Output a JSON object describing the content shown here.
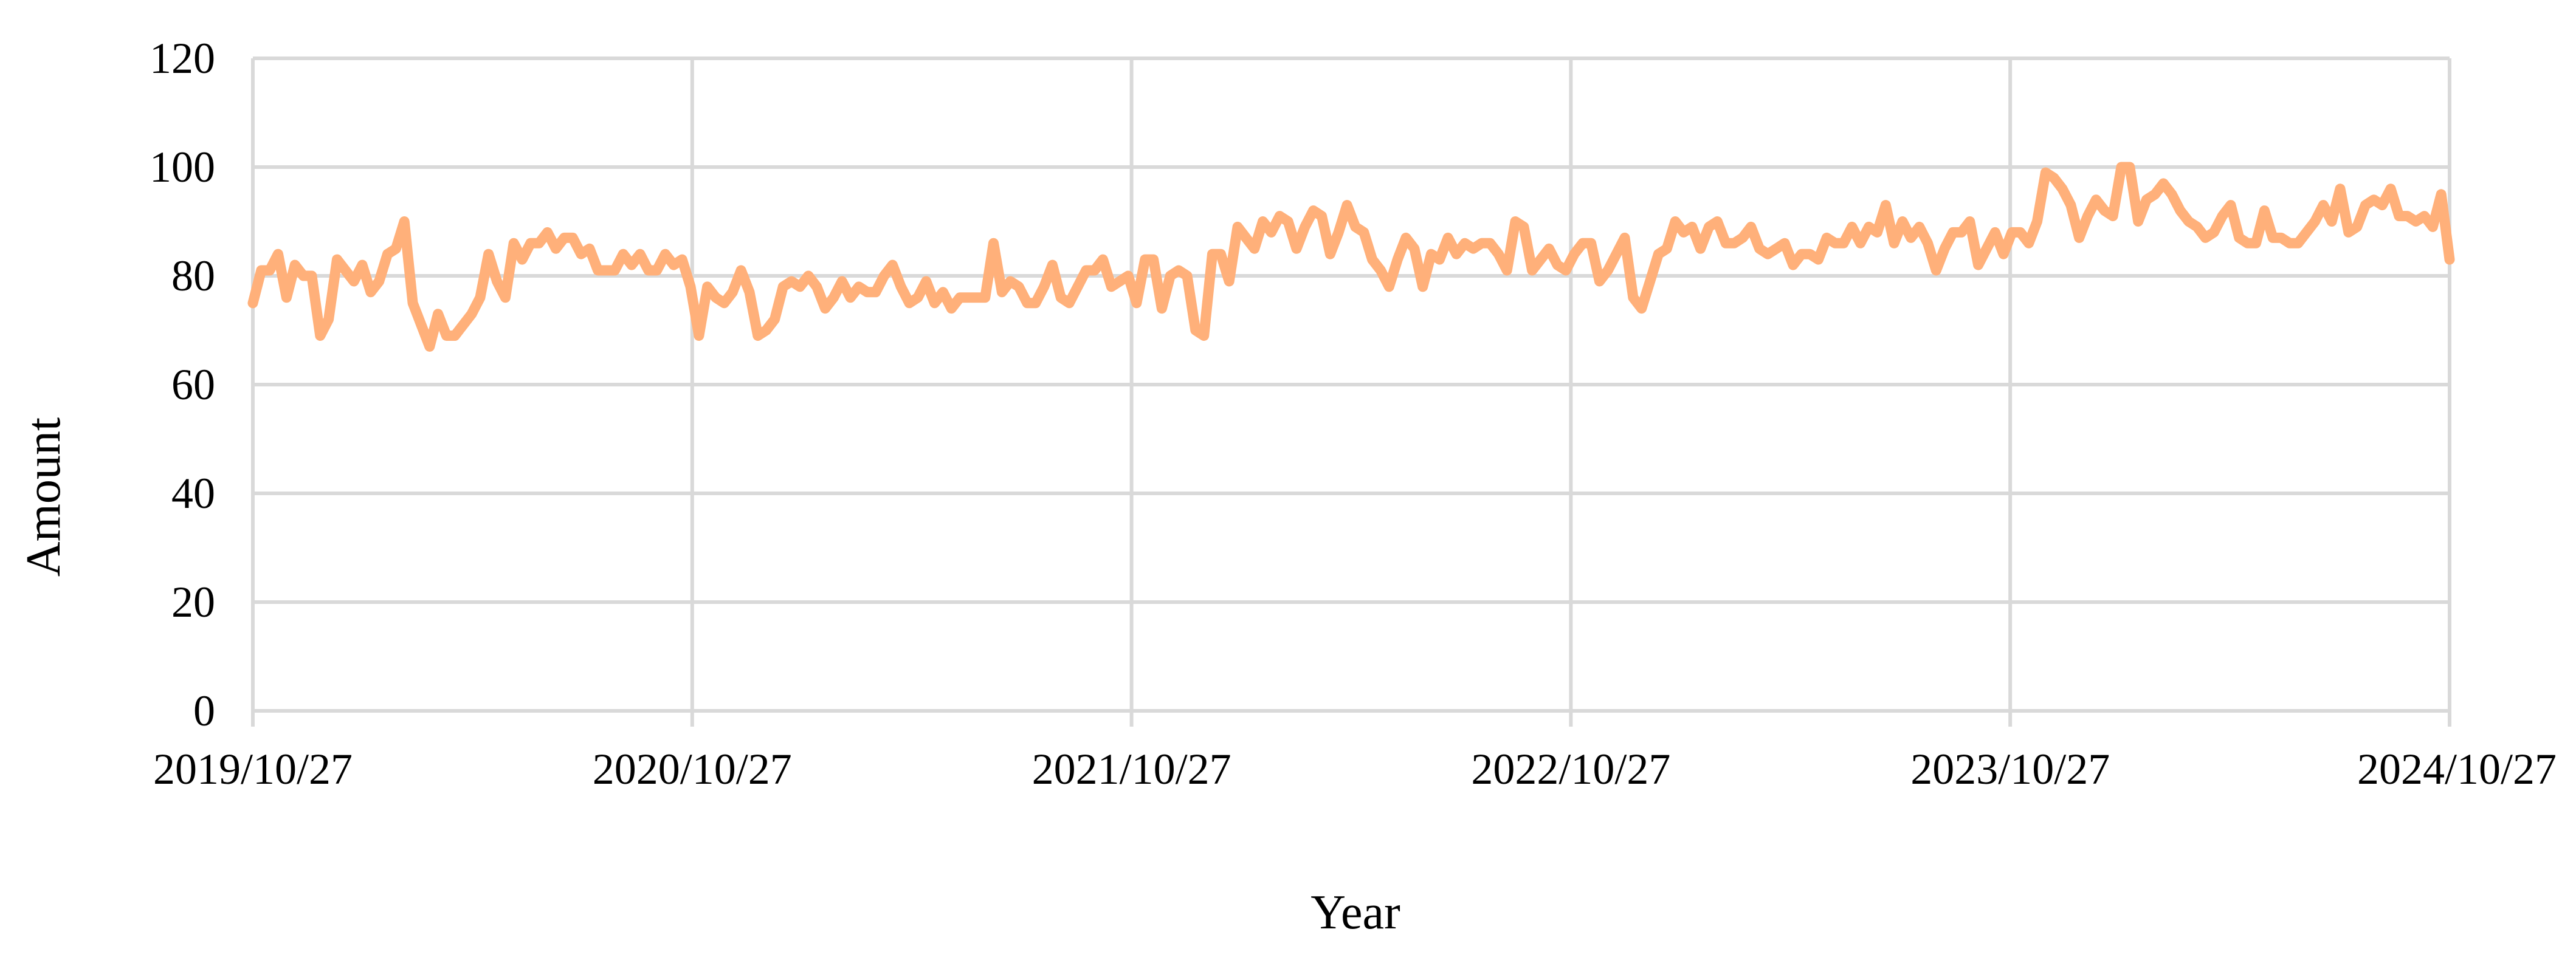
{
  "chart_data": {
    "type": "line",
    "title": "",
    "xlabel": "Year",
    "ylabel": "Amount",
    "ylim": [
      0,
      120
    ],
    "y_ticks": [
      0,
      20,
      40,
      60,
      80,
      100,
      120
    ],
    "x_tick_labels": [
      "2019/10/27",
      "2020/10/27",
      "2021/10/27",
      "2022/10/27",
      "2023/10/27",
      "2024/10/27"
    ],
    "xlim": [
      "2019/10/27",
      "2024/10/27"
    ],
    "grid": true,
    "legend": "none",
    "colors": {
      "line": "#FFB07A",
      "grid": "#D9D9D9",
      "text": "#000000"
    },
    "series": [
      {
        "x_start": "2019/10/27",
        "x_end": "2024/10/27",
        "step": "weekly",
        "values": [
          75,
          81,
          81,
          84,
          76,
          82,
          80,
          80,
          69,
          72,
          83,
          81,
          79,
          82,
          77,
          79,
          84,
          85,
          90,
          75,
          71,
          67,
          73,
          69,
          69,
          71,
          73,
          76,
          84,
          79,
          76,
          86,
          83,
          86,
          86,
          88,
          85,
          87,
          87,
          84,
          85,
          81,
          81,
          81,
          84,
          82,
          84,
          81,
          81,
          84,
          82,
          83,
          78,
          69,
          78,
          76,
          75,
          77,
          81,
          77,
          69,
          70,
          72,
          78,
          79,
          78,
          80,
          78,
          74,
          76,
          79,
          76,
          78,
          77,
          77,
          80,
          82,
          78,
          75,
          76,
          79,
          75,
          77,
          74,
          76,
          76,
          76,
          76,
          86,
          77,
          79,
          78,
          75,
          75,
          78,
          82,
          76,
          75,
          78,
          81,
          81,
          83,
          78,
          79,
          80,
          75,
          83,
          83,
          74,
          80,
          81,
          80,
          70,
          69,
          84,
          84,
          79,
          89,
          87,
          85,
          90,
          88,
          91,
          90,
          85,
          89,
          92,
          91,
          84,
          88,
          93,
          89,
          88,
          83,
          81,
          78,
          83,
          87,
          85,
          78,
          84,
          83,
          87,
          84,
          86,
          85,
          86,
          86,
          84,
          81,
          90,
          89,
          81,
          83,
          85,
          82,
          81,
          84,
          86,
          86,
          79,
          81,
          84,
          87,
          76,
          74,
          79,
          84,
          85,
          90,
          88,
          89,
          85,
          89,
          90,
          86,
          86,
          87,
          89,
          85,
          84,
          85,
          86,
          82,
          84,
          84,
          83,
          87,
          86,
          86,
          89,
          86,
          89,
          88,
          93,
          86,
          90,
          87,
          89,
          86,
          81,
          85,
          88,
          88,
          90,
          82,
          85,
          88,
          84,
          88,
          88,
          86,
          90,
          99,
          98,
          96,
          93,
          87,
          91,
          94,
          92,
          91,
          100,
          100,
          90,
          94,
          95,
          97,
          95,
          92,
          90,
          89,
          87,
          88,
          91,
          93,
          87,
          86,
          86,
          92,
          87,
          87,
          86,
          86,
          88,
          90,
          93,
          90,
          96,
          88,
          89,
          93,
          94,
          93,
          96,
          91,
          91,
          90,
          91,
          89,
          95,
          83
        ]
      }
    ]
  }
}
